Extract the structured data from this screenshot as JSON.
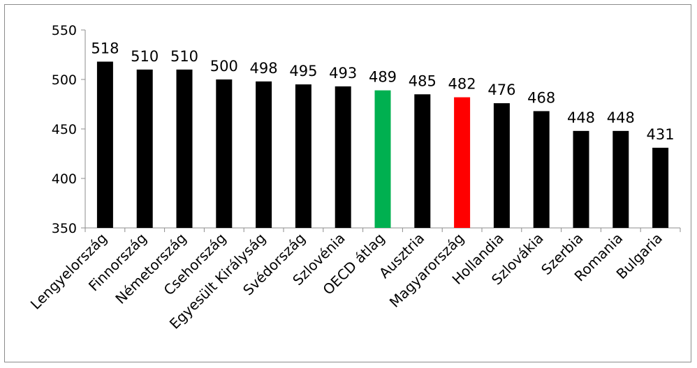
{
  "chart_data": {
    "type": "bar",
    "title": "",
    "xlabel": "",
    "ylabel": "",
    "ylim": [
      350,
      550
    ],
    "yticks": [
      350,
      400,
      450,
      500,
      550
    ],
    "grid": false,
    "legend": "none",
    "categories": [
      "Lengyelország",
      "Finnország",
      "Németország",
      "Csehország",
      "Egyesült Királyság",
      "Svédország",
      "Szlovénia",
      "OECD átlag",
      "Ausztria",
      "Magyarország",
      "Hollandia",
      "Szlovákia",
      "Szerbia",
      "Romania",
      "Bulgaria"
    ],
    "values": [
      518,
      510,
      510,
      500,
      498,
      495,
      493,
      489,
      485,
      482,
      476,
      468,
      448,
      448,
      431
    ],
    "colors": [
      "#000000",
      "#000000",
      "#000000",
      "#000000",
      "#000000",
      "#000000",
      "#000000",
      "#00b050",
      "#000000",
      "#ff0000",
      "#000000",
      "#000000",
      "#000000",
      "#000000",
      "#000000"
    ]
  }
}
